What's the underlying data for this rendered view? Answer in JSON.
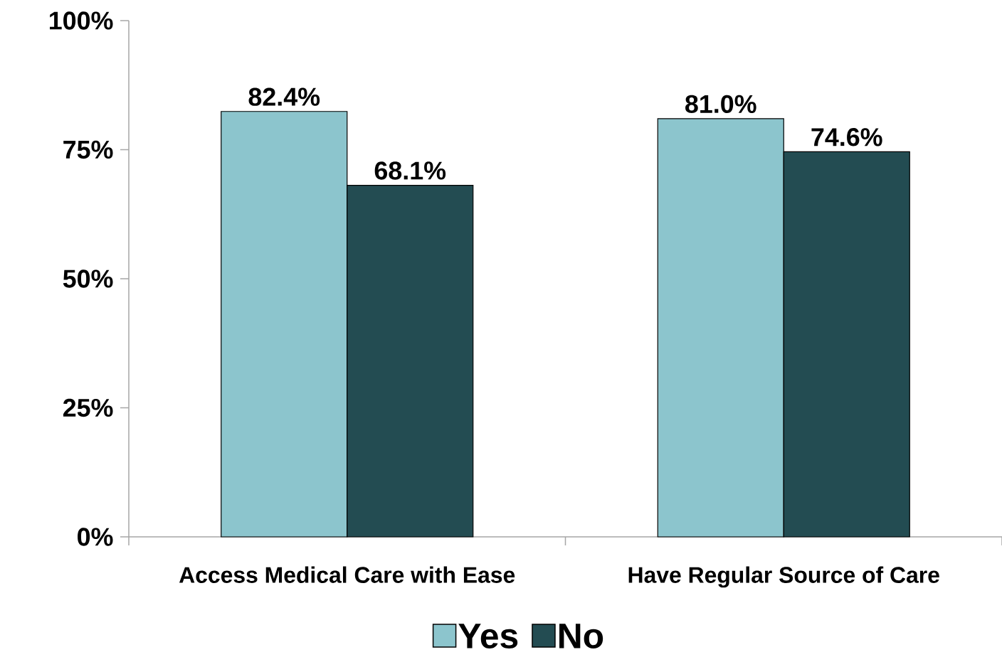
{
  "chart_data": {
    "type": "bar",
    "categories": [
      "Access Medical Care with Ease",
      "Have Regular Source of Care"
    ],
    "series": [
      {
        "name": "Yes",
        "color": "#8cc5cd",
        "values": [
          82.4,
          81.0
        ],
        "value_labels": [
          "82.4%",
          "81.0%"
        ]
      },
      {
        "name": "No",
        "color": "#234c52",
        "values": [
          68.1,
          74.6
        ],
        "value_labels": [
          "68.1%",
          "74.6%"
        ]
      }
    ],
    "ylim": [
      0,
      100
    ],
    "yticks": [
      {
        "value": 0,
        "label": "0%"
      },
      {
        "value": 25,
        "label": "25%"
      },
      {
        "value": 50,
        "label": "50%"
      },
      {
        "value": 75,
        "label": "75%"
      },
      {
        "value": 100,
        "label": "100%"
      }
    ],
    "legend": "bottom"
  }
}
